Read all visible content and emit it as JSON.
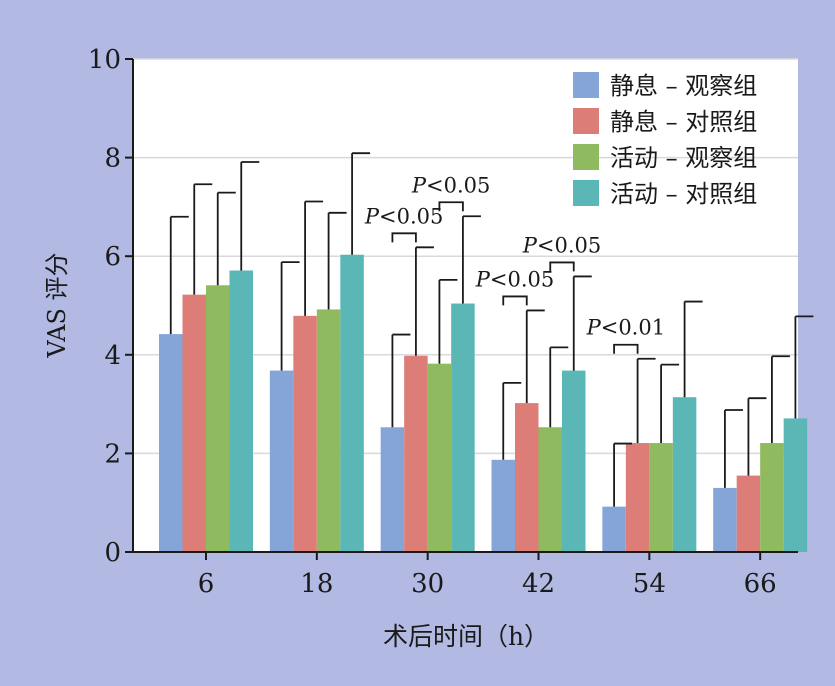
{
  "chart_data": {
    "type": "bar",
    "xlabel": "术后时间（h）",
    "ylabel": "VAS 评分",
    "ylim": [
      0,
      10
    ],
    "yticks": [
      0,
      2,
      4,
      6,
      8,
      10
    ],
    "grid": true,
    "legend_position": "top-right",
    "categories": [
      "6",
      "18",
      "30",
      "42",
      "54",
      "66"
    ],
    "series": [
      {
        "name": "静息 – 观察组",
        "color": "#85a5d9",
        "values": [
          4.42,
          3.68,
          2.53,
          1.87,
          0.92,
          1.3
        ],
        "error": [
          2.38,
          2.2,
          1.88,
          1.56,
          1.28,
          1.58
        ]
      },
      {
        "name": "静息 – 对照组",
        "color": "#dd7d78",
        "values": [
          5.22,
          4.79,
          3.98,
          3.02,
          2.21,
          1.55
        ],
        "error": [
          2.24,
          2.32,
          2.2,
          1.88,
          1.71,
          1.57
        ]
      },
      {
        "name": "活动 – 观察组",
        "color": "#8fba5f",
        "values": [
          5.41,
          4.92,
          3.82,
          2.53,
          2.21,
          2.21
        ],
        "error": [
          1.88,
          1.96,
          1.7,
          1.62,
          1.59,
          1.76
        ]
      },
      {
        "name": "活动 – 对照组",
        "color": "#5bb6b6",
        "values": [
          5.71,
          6.03,
          5.04,
          3.68,
          3.14,
          2.71
        ],
        "error": [
          2.2,
          2.06,
          1.77,
          1.91,
          1.94,
          2.07
        ]
      }
    ],
    "annotations": [
      {
        "category": "30",
        "between": [
          0,
          1
        ],
        "label": "P<0.05"
      },
      {
        "category": "30",
        "between": [
          2,
          3
        ],
        "label": "P<0.05"
      },
      {
        "category": "42",
        "between": [
          0,
          1
        ],
        "label": "P<0.05"
      },
      {
        "category": "42",
        "between": [
          2,
          3
        ],
        "label": "P<0.05"
      },
      {
        "category": "54",
        "between": [
          0,
          1
        ],
        "label": "P<0.01"
      }
    ]
  }
}
